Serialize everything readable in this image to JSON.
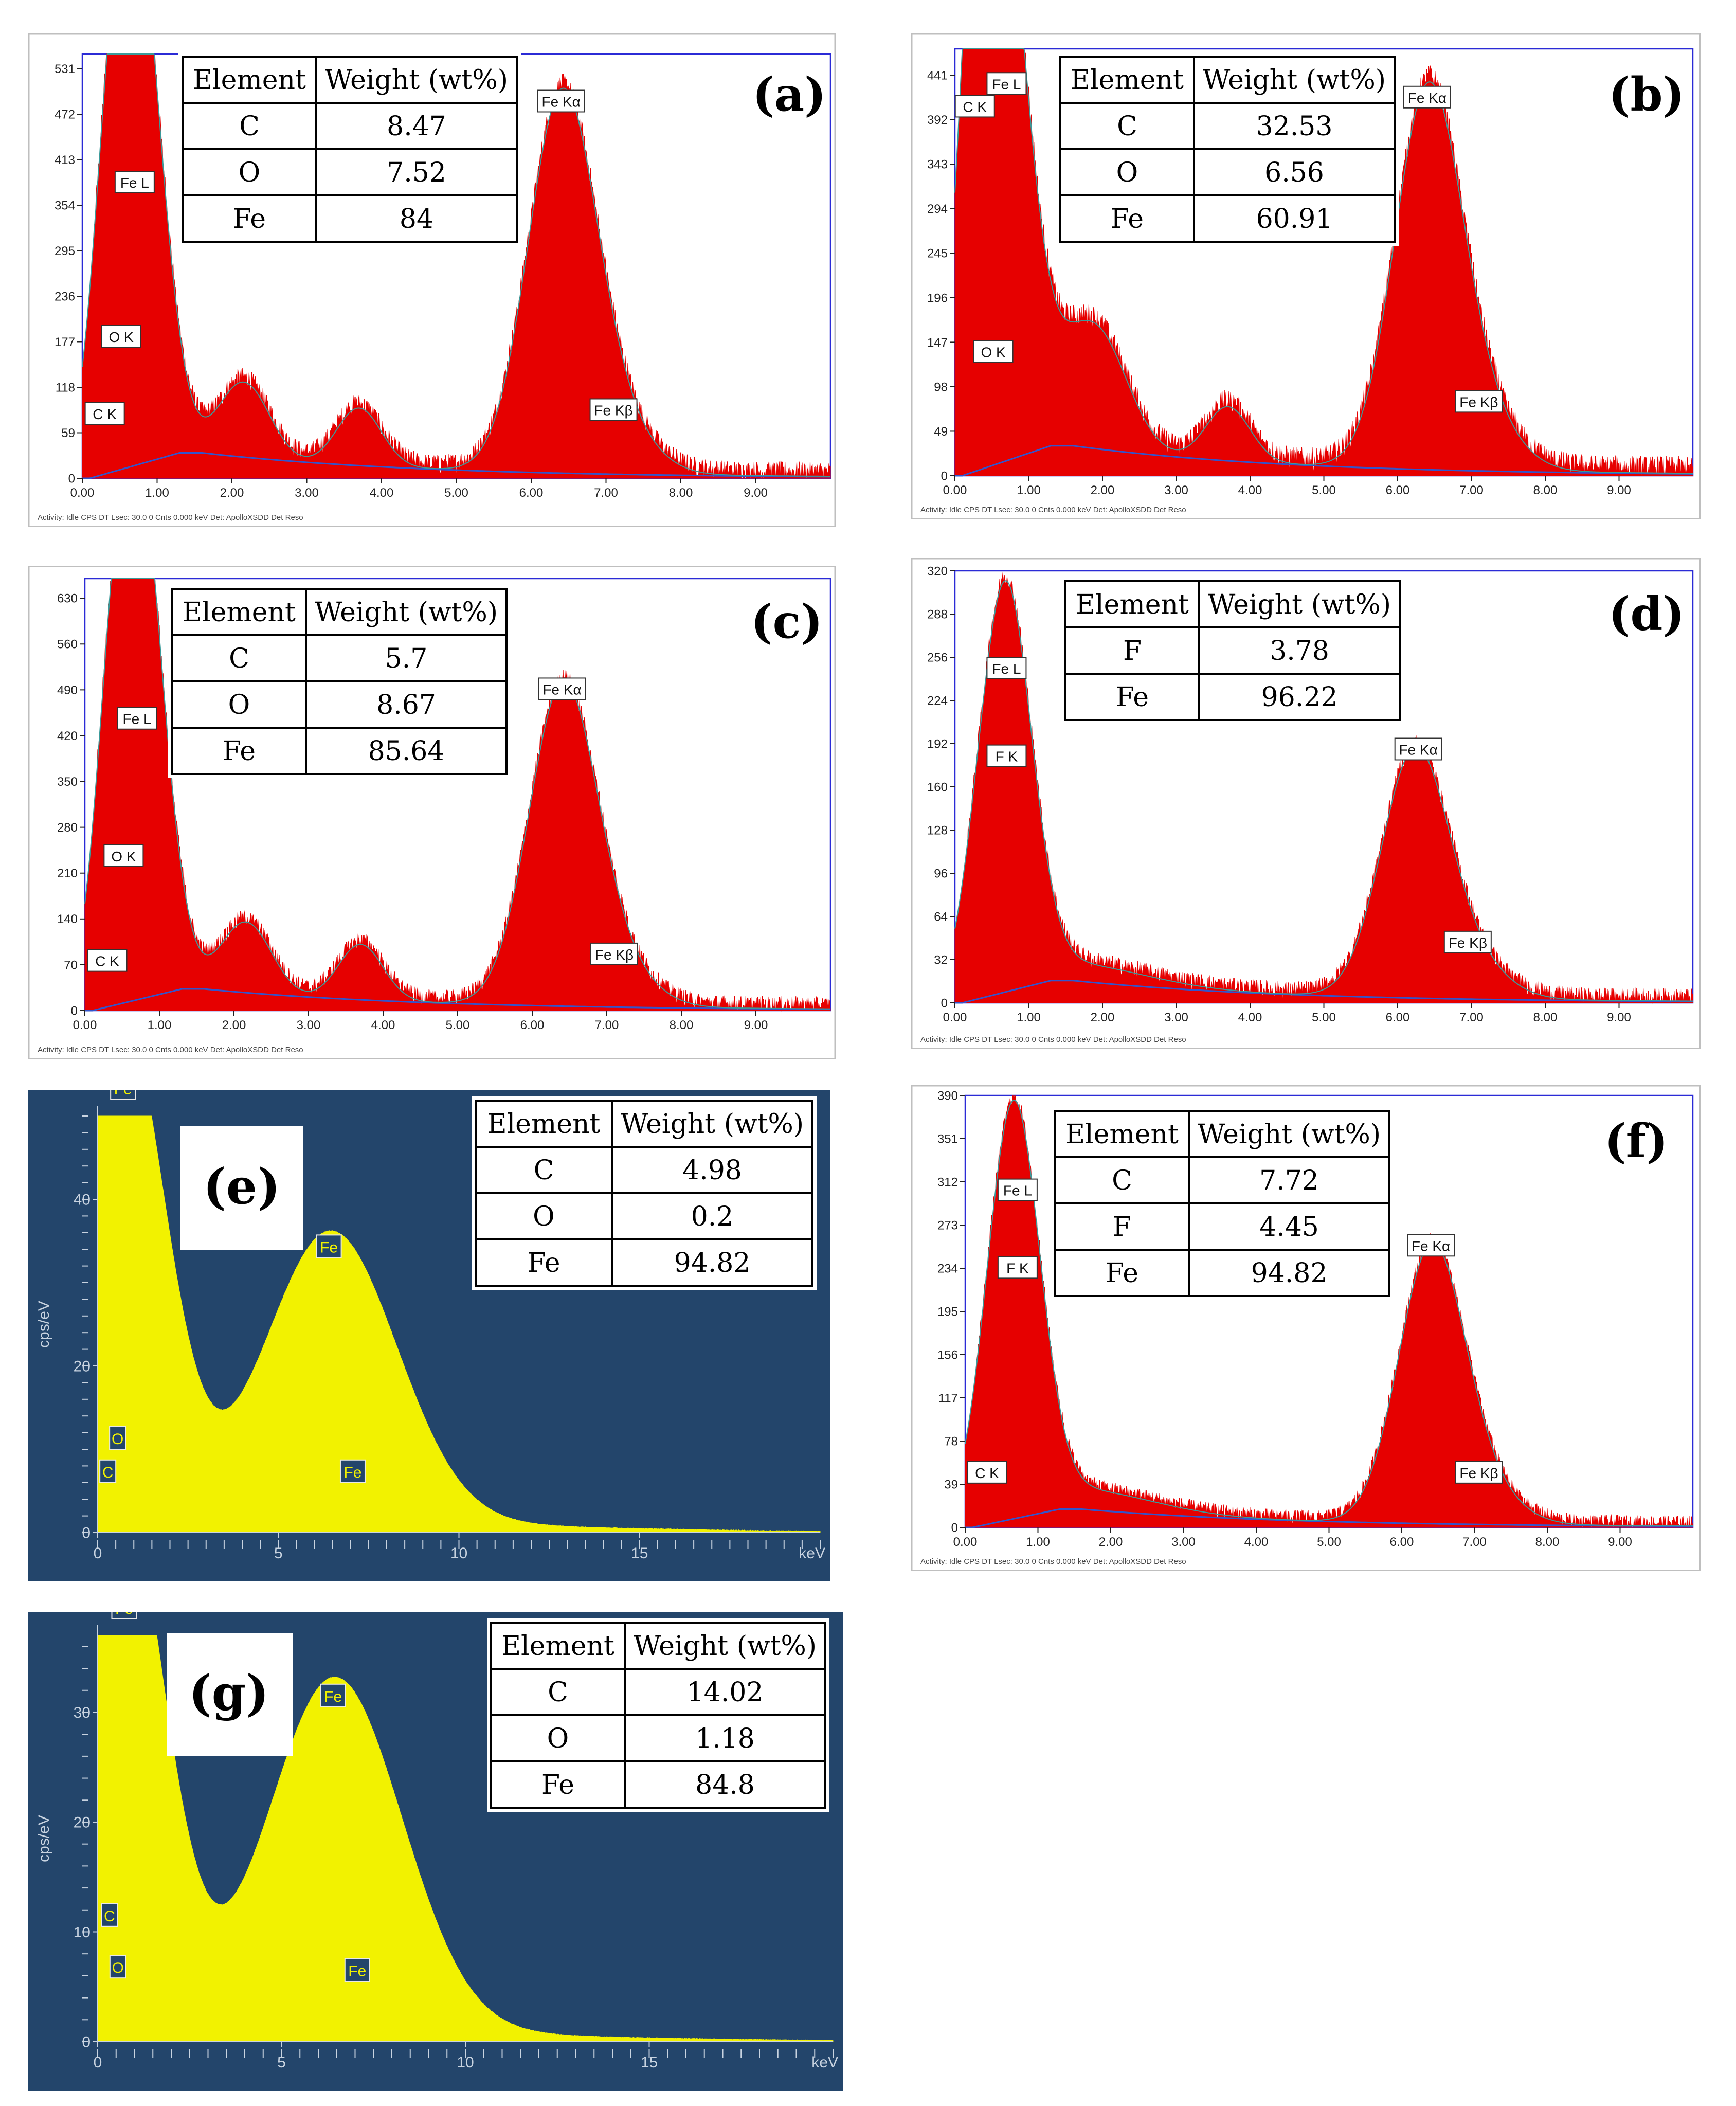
{
  "chart_data": [
    {
      "id": "a",
      "type": "line",
      "style": "light",
      "panel_label": "(a)",
      "x_ticks": [
        "0.00",
        "1.00",
        "2.00",
        "3.00",
        "4.00",
        "5.00",
        "6.00",
        "7.00",
        "8.00",
        "9.00"
      ],
      "y_ticks": [
        "0",
        "59",
        "118",
        "177",
        "236",
        "295",
        "354",
        "413",
        "472",
        "531"
      ],
      "xlim": [
        0,
        10
      ],
      "ylim": [
        0,
        550
      ],
      "peaks": [
        [
          0.27,
          60,
          0.02
        ],
        [
          0.52,
          190,
          0.03
        ],
        [
          0.7,
          575,
          0.035
        ],
        [
          1.0,
          30,
          0.03
        ],
        [
          2.0,
          55,
          0.03
        ],
        [
          2.3,
          58,
          0.03
        ],
        [
          3.7,
          75,
          0.03
        ],
        [
          6.4,
          470,
          0.045
        ],
        [
          7.06,
          65,
          0.05
        ]
      ],
      "background": 30,
      "peak_labels": [
        {
          "text": "Fe L",
          "x": 0.7,
          "y": 370
        },
        {
          "text": "O  K",
          "x": 0.52,
          "y": 170
        },
        {
          "text": "C  K",
          "x": 0.3,
          "y": 70
        },
        {
          "text": "Fe Kα",
          "x": 6.4,
          "y": 475
        },
        {
          "text": "Fe Kβ",
          "x": 7.1,
          "y": 75
        }
      ],
      "footer": "Activity: Idle CPS        DT          Lsec: 30.0   0 Cnts        0.000 keV   Det: ApolloXSDD Det                    Reso",
      "table": {
        "headers": [
          "Element",
          "Weight (wt%)"
        ],
        "rows": [
          [
            "C",
            "8.47"
          ],
          [
            "O",
            "7.52"
          ],
          [
            "Fe",
            "84"
          ]
        ]
      }
    },
    {
      "id": "b",
      "type": "line",
      "style": "light",
      "panel_label": "(b)",
      "x_ticks": [
        "0.00",
        "1.00",
        "2.00",
        "3.00",
        "4.00",
        "5.00",
        "6.00",
        "7.00",
        "8.00",
        "9.00"
      ],
      "y_ticks": [
        "0",
        "49",
        "98",
        "147",
        "196",
        "245",
        "294",
        "343",
        "392",
        "441"
      ],
      "xlim": [
        0,
        10
      ],
      "ylim": [
        0,
        470
      ],
      "peaks": [
        [
          0.27,
          390,
          0.025
        ],
        [
          0.52,
          150,
          0.03
        ],
        [
          0.7,
          445,
          0.035
        ],
        [
          1.6,
          60,
          0.05
        ],
        [
          1.85,
          55,
          0.04
        ],
        [
          2.1,
          40,
          0.04
        ],
        [
          3.7,
          60,
          0.03
        ],
        [
          6.4,
          400,
          0.045
        ],
        [
          7.06,
          60,
          0.05
        ]
      ],
      "background": 30,
      "peak_labels": [
        {
          "text": "C  K",
          "x": 0.27,
          "y": 395
        },
        {
          "text": "Fe L",
          "x": 0.7,
          "y": 420
        },
        {
          "text": "O  K",
          "x": 0.52,
          "y": 125
        },
        {
          "text": "Fe Kα",
          "x": 6.4,
          "y": 405
        },
        {
          "text": "Fe Kβ",
          "x": 7.1,
          "y": 70
        }
      ],
      "footer": "Activity: Idle CPS        DT          Lsec: 30.0   0 Cnts        0.000 keV   Det: ApolloXSDD Det                    Reso",
      "table": {
        "headers": [
          "Element",
          "Weight (wt%)"
        ],
        "rows": [
          [
            "C",
            "32.53"
          ],
          [
            "O",
            "6.56"
          ],
          [
            "Fe",
            "60.91"
          ]
        ]
      }
    },
    {
      "id": "c",
      "type": "line",
      "style": "light",
      "panel_label": "(c)",
      "x_ticks": [
        "0.00",
        "1.00",
        "2.00",
        "3.00",
        "4.00",
        "5.00",
        "6.00",
        "7.00",
        "8.00",
        "9.00"
      ],
      "y_ticks": [
        "0",
        "70",
        "140",
        "210",
        "280",
        "350",
        "420",
        "490",
        "560",
        "630"
      ],
      "xlim": [
        0,
        10
      ],
      "ylim": [
        0,
        660
      ],
      "peaks": [
        [
          0.27,
          60,
          0.02
        ],
        [
          0.52,
          230,
          0.03
        ],
        [
          0.7,
          650,
          0.035
        ],
        [
          1.0,
          35,
          0.03
        ],
        [
          2.0,
          60,
          0.03
        ],
        [
          2.3,
          65,
          0.03
        ],
        [
          3.7,
          85,
          0.03
        ],
        [
          6.4,
          470,
          0.045
        ],
        [
          7.06,
          60,
          0.05
        ]
      ],
      "background": 30,
      "peak_labels": [
        {
          "text": "Fe L",
          "x": 0.7,
          "y": 430
        },
        {
          "text": "O  K",
          "x": 0.52,
          "y": 220
        },
        {
          "text": "C  K",
          "x": 0.3,
          "y": 60
        },
        {
          "text": "Fe Kα",
          "x": 6.4,
          "y": 475
        },
        {
          "text": "Fe Kβ",
          "x": 7.1,
          "y": 70
        }
      ],
      "footer": "Activity: Idle CPS        DT          Lsec: 30.0   0 Cnts        0.000 keV   Det: ApolloXSDD Det                    Reso",
      "table": {
        "headers": [
          "Element",
          "Weight (wt%)"
        ],
        "rows": [
          [
            "C",
            "5.7"
          ],
          [
            "O",
            "8.67"
          ],
          [
            "Fe",
            "85.64"
          ]
        ]
      }
    },
    {
      "id": "d",
      "type": "line",
      "style": "light",
      "panel_label": "(d)",
      "x_ticks": [
        "0.00",
        "1.00",
        "2.00",
        "3.00",
        "4.00",
        "5.00",
        "6.00",
        "7.00",
        "8.00",
        "9.00"
      ],
      "y_ticks": [
        "0",
        "32",
        "64",
        "96",
        "128",
        "160",
        "192",
        "224",
        "256",
        "288",
        "320"
      ],
      "xlim": [
        0,
        10
      ],
      "ylim": [
        0,
        320
      ],
      "peaks": [
        [
          0.2,
          10,
          0.02
        ],
        [
          0.68,
          295,
          0.035
        ],
        [
          1.6,
          15,
          0.1
        ],
        [
          6.22,
          175,
          0.045
        ],
        [
          6.92,
          27,
          0.05
        ]
      ],
      "background": 15,
      "peak_labels": [
        {
          "text": "Fe L",
          "x": 0.7,
          "y": 240
        },
        {
          "text": "F  K",
          "x": 0.7,
          "y": 175
        },
        {
          "text": "Fe Kα",
          "x": 6.28,
          "y": 180
        },
        {
          "text": "Fe Kβ",
          "x": 6.95,
          "y": 37
        }
      ],
      "footer": "Activity: Idle CPS        DT          Lsec: 30.0   0 Cnts        0.000 keV   Det: ApolloXSDD Det                    Reso",
      "table": {
        "headers": [
          "Element",
          "Weight (wt%)"
        ],
        "rows": [
          [
            "F",
            "3.78"
          ],
          [
            "Fe",
            "96.22"
          ]
        ]
      }
    },
    {
      "id": "e",
      "type": "line",
      "style": "dark",
      "panel_label": "(e)",
      "x_ticks": [
        "0",
        "5",
        "10",
        "15"
      ],
      "y_ticks": [
        "0",
        "20",
        "40"
      ],
      "x_unit": "keV",
      "ylabel": "cps/eV",
      "xlim": [
        0,
        20
      ],
      "ylim": [
        0,
        50
      ],
      "peaks": [
        [
          0.28,
          3.5,
          0.05
        ],
        [
          0.52,
          7.5,
          0.06
        ],
        [
          0.7,
          50,
          0.06
        ],
        [
          1.6,
          1.4,
          0.4
        ],
        [
          6.4,
          31,
          0.09
        ],
        [
          7.06,
          3.8,
          0.09
        ]
      ],
      "background": 0.8,
      "peak_labels": [
        {
          "text": "Fe",
          "x": 0.7,
          "y": 52
        },
        {
          "text": "O",
          "x": 0.55,
          "y": 10
        },
        {
          "text": "C",
          "x": 0.28,
          "y": 6
        },
        {
          "text": "Fe",
          "x": 6.4,
          "y": 33
        },
        {
          "text": "Fe",
          "x": 7.06,
          "y": 6
        }
      ],
      "table": {
        "headers": [
          "Element",
          "Weight (wt%)"
        ],
        "rows": [
          [
            "C",
            "4.98"
          ],
          [
            "O",
            "0.2"
          ],
          [
            "Fe",
            "94.82"
          ]
        ]
      }
    },
    {
      "id": "f",
      "type": "line",
      "style": "light",
      "panel_label": "(f)",
      "x_ticks": [
        "0.00",
        "1.00",
        "2.00",
        "3.00",
        "4.00",
        "5.00",
        "6.00",
        "7.00",
        "8.00",
        "9.00"
      ],
      "y_ticks": [
        "0",
        "39",
        "78",
        "117",
        "156",
        "195",
        "234",
        "273",
        "312",
        "351",
        "390"
      ],
      "xlim": [
        0,
        10
      ],
      "ylim": [
        0,
        390
      ],
      "peaks": [
        [
          0.28,
          25,
          0.03
        ],
        [
          0.68,
          355,
          0.035
        ],
        [
          1.6,
          20,
          0.1
        ],
        [
          6.4,
          240,
          0.045
        ],
        [
          7.06,
          30,
          0.05
        ]
      ],
      "background": 15,
      "peak_labels": [
        {
          "text": "Fe L",
          "x": 0.72,
          "y": 295
        },
        {
          "text": "F  K",
          "x": 0.72,
          "y": 225
        },
        {
          "text": "C  K",
          "x": 0.3,
          "y": 40
        },
        {
          "text": "Fe Kα",
          "x": 6.4,
          "y": 245
        },
        {
          "text": "Fe Kβ",
          "x": 7.06,
          "y": 40
        }
      ],
      "footer": "Activity: Idle CPS        DT          Lsec: 30.0   0 Cnts        0.000 keV   Det: ApolloXSDD Det                    Reso",
      "table": {
        "headers": [
          "Element",
          "Weight (wt%)"
        ],
        "rows": [
          [
            "C",
            "7.72"
          ],
          [
            "F",
            "4.45"
          ],
          [
            "Fe",
            "94.82"
          ]
        ]
      }
    },
    {
      "id": "g",
      "type": "line",
      "style": "dark",
      "panel_label": "(g)",
      "x_ticks": [
        "0",
        "5",
        "10",
        "15"
      ],
      "y_ticks": [
        "0",
        "10",
        "20",
        "30"
      ],
      "x_unit": "keV",
      "ylabel": "cps/eV",
      "xlim": [
        0,
        20
      ],
      "ylim": [
        0,
        37
      ],
      "peaks": [
        [
          0.28,
          8,
          0.05
        ],
        [
          0.52,
          5.5,
          0.06
        ],
        [
          0.7,
          37,
          0.06
        ],
        [
          1.6,
          1.0,
          0.4
        ],
        [
          6.4,
          29,
          0.09
        ],
        [
          7.06,
          3.2,
          0.09
        ]
      ],
      "background": 0.6,
      "peak_labels": [
        {
          "text": "Fe",
          "x": 0.72,
          "y": 38.5
        },
        {
          "text": "C",
          "x": 0.32,
          "y": 10.5
        },
        {
          "text": "O",
          "x": 0.55,
          "y": 5.8
        },
        {
          "text": "Fe",
          "x": 6.4,
          "y": 30.5
        },
        {
          "text": "Fe",
          "x": 7.06,
          "y": 5.5
        }
      ],
      "table": {
        "headers": [
          "Element",
          "Weight (wt%)"
        ],
        "rows": [
          [
            "C",
            "14.02"
          ],
          [
            "O",
            "1.18"
          ],
          [
            "Fe",
            "84.8"
          ]
        ]
      }
    }
  ]
}
